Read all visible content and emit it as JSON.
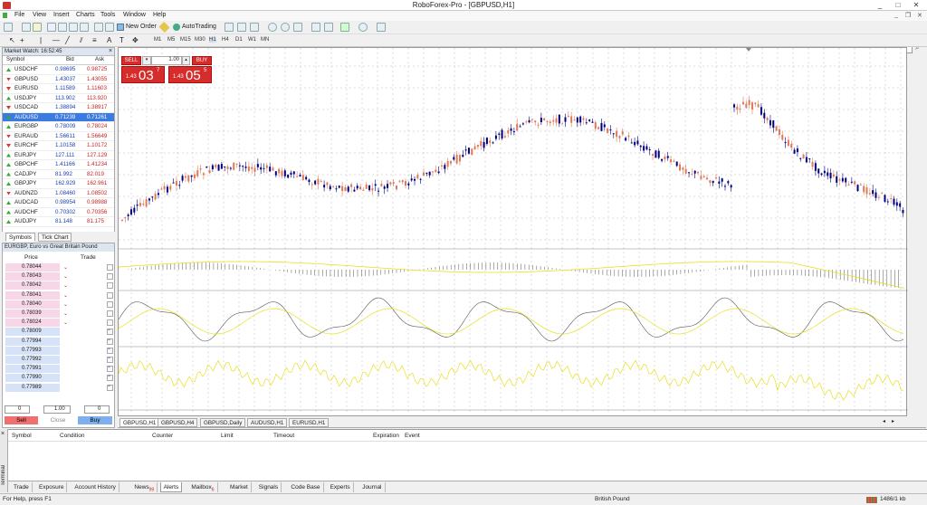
{
  "app": {
    "title": "RoboForex-Pro - [GBPUSD,H1]",
    "window_controls": [
      "_",
      "□",
      "✕"
    ]
  },
  "menu": [
    "File",
    "View",
    "Insert",
    "Charts",
    "Tools",
    "Window",
    "Help"
  ],
  "toolbar": {
    "new_order": "New Order",
    "autotrading": "AutoTrading",
    "timeframes": [
      "M1",
      "M5",
      "M15",
      "M30",
      "H1",
      "H4",
      "D1",
      "W1",
      "MN"
    ]
  },
  "market_watch": {
    "title": "Market Watch: 16:52:45",
    "columns": [
      "Symbol",
      "Bid",
      "Ask"
    ],
    "rows": [
      {
        "symbol": "USDCHF",
        "bid": "0.98695",
        "ask": "0.98725",
        "dir": "up"
      },
      {
        "symbol": "GBPUSD",
        "bid": "1.43037",
        "ask": "1.43055",
        "dir": "down"
      },
      {
        "symbol": "EURUSD",
        "bid": "1.11589",
        "ask": "1.11603",
        "dir": "down"
      },
      {
        "symbol": "USDJPY",
        "bid": "113.902",
        "ask": "113.920",
        "dir": "up"
      },
      {
        "symbol": "USDCAD",
        "bid": "1.38894",
        "ask": "1.38917",
        "dir": "down"
      },
      {
        "symbol": "AUDUSD",
        "bid": "0.71239",
        "ask": "0.71261",
        "dir": "up"
      },
      {
        "symbol": "EURGBP",
        "bid": "0.78009",
        "ask": "0.78024",
        "dir": "up"
      },
      {
        "symbol": "EURAUD",
        "bid": "1.56611",
        "ask": "1.56649",
        "dir": "down"
      },
      {
        "symbol": "EURCHF",
        "bid": "1.10158",
        "ask": "1.10172",
        "dir": "down"
      },
      {
        "symbol": "EURJPY",
        "bid": "127.111",
        "ask": "127.129",
        "dir": "up"
      },
      {
        "symbol": "GBPCHF",
        "bid": "1.41166",
        "ask": "1.41234",
        "dir": "up"
      },
      {
        "symbol": "CADJPY",
        "bid": "81.992",
        "ask": "82.019",
        "dir": "up"
      },
      {
        "symbol": "GBPJPY",
        "bid": "162.929",
        "ask": "162.961",
        "dir": "up"
      },
      {
        "symbol": "AUDNZD",
        "bid": "1.08460",
        "ask": "1.08502",
        "dir": "down"
      },
      {
        "symbol": "AUDCAD",
        "bid": "0.98954",
        "ask": "0.98988",
        "dir": "up"
      },
      {
        "symbol": "AUDCHF",
        "bid": "0.70302",
        "ask": "0.70356",
        "dir": "up"
      },
      {
        "symbol": "AUDJPY",
        "bid": "81.148",
        "ask": "81.175",
        "dir": "up"
      }
    ],
    "selected_index": 5,
    "tabs": [
      "Symbols",
      "Tick Chart"
    ]
  },
  "depth": {
    "title": "EURGBP, Euro vs Great Britain Pound",
    "columns": [
      "Price",
      "Trade"
    ],
    "sell_prices": [
      "0.78044",
      "0.78043",
      "0.78042",
      "0.78041",
      "0.78040",
      "0.78039",
      "0.78024"
    ],
    "buy_prices": [
      "0.78009",
      "0.77994",
      "0.77993",
      "0.77992",
      "0.77991",
      "0.77990",
      "0.77989"
    ],
    "controls": {
      "left_value": "0",
      "volume": "1.00",
      "right_value": "0",
      "sell": "Sell",
      "close": "Close",
      "buy": "Buy"
    }
  },
  "one_click": {
    "sell": "SELL",
    "buy": "BUY",
    "volume": "1.00",
    "sell_price_big": "03",
    "sell_price_small": "1.43",
    "sell_price_sup": "7",
    "buy_price_big": "05",
    "buy_price_small": "1.43",
    "buy_price_sup": "5"
  },
  "chart_tabs": [
    "GBPUSD,H1",
    "GBPUSD,H4",
    "GBPUSD,Daily",
    "AUDUSD,H1",
    "EURUSD,H1"
  ],
  "alerts": {
    "columns": [
      "Symbol",
      "Condition",
      "Counter",
      "Limit",
      "Timeout",
      "Expiration",
      "Event"
    ]
  },
  "terminal": {
    "side_label": "Terminal",
    "tabs": [
      {
        "label": "Trade",
        "badge": ""
      },
      {
        "label": "Exposure",
        "badge": ""
      },
      {
        "label": "Account History",
        "badge": ""
      },
      {
        "label": "News",
        "badge": "99"
      },
      {
        "label": "Alerts",
        "badge": ""
      },
      {
        "label": "Mailbox",
        "badge": "6"
      },
      {
        "label": "Market",
        "badge": ""
      },
      {
        "label": "Signals",
        "badge": ""
      },
      {
        "label": "Code Base",
        "badge": ""
      },
      {
        "label": "Experts",
        "badge": ""
      },
      {
        "label": "Journal",
        "badge": ""
      }
    ],
    "active_tab": 4
  },
  "status": {
    "help": "For Help, press F1",
    "currency": "British Pound",
    "traffic": "1486/1 kb"
  },
  "colors": {
    "bull_candle": "#000080",
    "bear_candle": "#e0785a",
    "sell_buy_red": "#d62c2c",
    "indicator_line": "#e8e020",
    "selected_row": "#3b7ae0"
  }
}
